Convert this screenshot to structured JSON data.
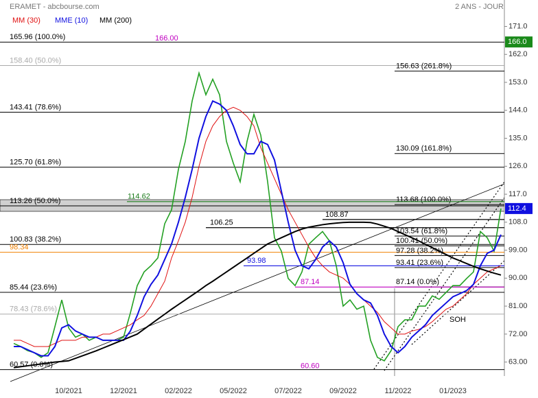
{
  "chart_data": {
    "type": "line",
    "title": "ERAMET - abcbourse.com",
    "subtitle": "2 ANS - JOUR",
    "categories": [
      null,
      null,
      null,
      null,
      null,
      null,
      null,
      null,
      "10/2021",
      null,
      null,
      null,
      null,
      null,
      null,
      null,
      "12/2021",
      null,
      null,
      null,
      null,
      null,
      null,
      null,
      "02/2022",
      null,
      null,
      null,
      null,
      null,
      null,
      null,
      "05/2022",
      null,
      null,
      null,
      null,
      null,
      null,
      null,
      "07/2022",
      null,
      null,
      null,
      null,
      null,
      null,
      null,
      "09/2022",
      null,
      null,
      null,
      null,
      null,
      null,
      null,
      "11/2022",
      null,
      null,
      null,
      null,
      null,
      null,
      null,
      "01/2023",
      null,
      null,
      null,
      null,
      null,
      null,
      null
    ],
    "values": [
      69,
      68,
      66.7,
      66,
      64.5,
      66,
      74.4,
      83,
      74,
      71,
      72,
      70,
      71,
      70,
      70,
      70,
      71,
      78.8,
      87.6,
      92,
      94,
      96.5,
      107.5,
      112,
      125,
      134,
      147,
      156,
      149,
      154,
      149,
      134,
      127,
      121,
      134,
      142.7,
      136,
      121,
      103,
      98.7,
      89.9,
      87.6,
      92,
      100.9,
      103,
      105,
      102,
      94,
      81,
      83,
      80,
      81,
      70,
      64.5,
      63.4,
      66.7,
      74.4,
      76.6,
      76.6,
      81,
      81,
      84.3,
      83.2,
      85.4,
      87.6,
      87.6,
      89.9,
      92,
      105,
      103,
      98.7,
      112.4
    ],
    "color": "#22a022",
    "series": [
      {
        "name": "MM (30)",
        "color": "#e01010",
        "values": [
          70,
          70,
          69,
          68,
          68,
          68,
          69,
          70,
          70,
          70,
          71,
          71,
          71,
          72,
          72,
          73,
          74,
          75,
          76.6,
          78,
          81,
          85,
          89,
          96.5,
          102,
          108,
          116,
          126,
          134,
          139,
          142,
          144,
          145,
          144,
          142,
          139,
          132,
          127,
          122,
          117,
          112,
          108,
          104,
          100,
          96.5,
          94,
          92,
          91,
          90,
          88,
          85,
          83,
          81,
          79,
          76,
          74,
          72,
          72,
          73,
          73.5,
          74.4,
          76,
          78,
          80,
          81,
          83,
          85,
          88,
          90,
          92,
          93,
          94
        ]
      },
      {
        "name": "MME (10)",
        "color": "#1010e0",
        "values": [
          68,
          68,
          67,
          66,
          65,
          65,
          68,
          74,
          75,
          73,
          72,
          71,
          71,
          70,
          70,
          70,
          70,
          73,
          78,
          84,
          88,
          91,
          96,
          101,
          108,
          116,
          125,
          135,
          142,
          147,
          146,
          144,
          139,
          133,
          130,
          130,
          134,
          133,
          128,
          118,
          108,
          99,
          94,
          93,
          96,
          100,
          102,
          100,
          95,
          88,
          85,
          83,
          82,
          78,
          72,
          68,
          66,
          68,
          71,
          73,
          75,
          78,
          80,
          82,
          84,
          85,
          86,
          88,
          94,
          98,
          99,
          104
        ]
      },
      {
        "name": "MM (200)",
        "color": "#000000",
        "values": [
          61.2,
          61.5,
          61.8,
          62.1,
          62.4,
          62.7,
          63,
          63.2,
          63.4,
          64.2,
          65,
          65.8,
          66.6,
          67.5,
          68.4,
          69.3,
          70.2,
          71.1,
          72,
          73.6,
          75.2,
          76.8,
          78.4,
          80,
          81.5,
          83,
          84.5,
          86,
          87.6,
          89,
          90.5,
          92,
          93.5,
          95,
          96.5,
          98,
          99.5,
          101,
          102,
          103,
          104,
          105,
          105.8,
          106.4,
          106.8,
          107.2,
          107.5,
          107.7,
          107.9,
          108,
          108,
          108,
          107.9,
          107.4,
          106.7,
          106,
          105,
          104,
          103,
          102,
          100.9,
          99.8,
          98.7,
          97.6,
          96.5,
          95.6,
          94.7,
          93.8,
          93,
          92.3,
          91.6,
          91
        ]
      }
    ],
    "ylim": [
      58.5,
      179.5
    ],
    "yticks": [
      {
        "value": 63,
        "label": "63.00"
      },
      {
        "value": 72,
        "label": "72.00"
      },
      {
        "value": 81,
        "label": "81.00"
      },
      {
        "value": 90,
        "label": "90.00"
      },
      {
        "value": 99,
        "label": "99.00"
      },
      {
        "value": 108,
        "label": "108.0"
      },
      {
        "value": 117,
        "label": "117.0"
      },
      {
        "value": 126,
        "label": "126.0"
      },
      {
        "value": 135,
        "label": "135.0"
      },
      {
        "value": 144,
        "label": "144.0"
      },
      {
        "value": 153,
        "label": "153.0"
      },
      {
        "value": 162,
        "label": "162.0"
      },
      {
        "value": 171,
        "label": "171.0"
      }
    ],
    "price_tags": [
      {
        "value": 166.0,
        "label": "166.0",
        "color": "#1a8a1a"
      },
      {
        "value": 112.4,
        "label": "112.4",
        "color": "#1010e0"
      }
    ],
    "levels": [
      {
        "value": 165.96,
        "label": "165.96  (100.0%)",
        "color": "#000000"
      },
      {
        "value": 158.4,
        "label": "158.40  (50.0%)",
        "color": "#aaaaaa"
      },
      {
        "value": 143.41,
        "label": "143.41  (78.6%)",
        "color": "#000000"
      },
      {
        "value": 125.7,
        "label": "125.70  (61.8%)",
        "color": "#000000"
      },
      {
        "value": 113.26,
        "label": "113.26  (50.0%)",
        "color": "#000000"
      },
      {
        "value": 100.83,
        "label": "100.83  (38.2%)",
        "color": "#000000"
      },
      {
        "value": 98.34,
        "label": "98.34",
        "color": "#f08000"
      },
      {
        "value": 85.44,
        "label": "85.44  (23.6%)",
        "color": "#000000"
      },
      {
        "value": 78.43,
        "label": "78.43  (78.6%)",
        "color": "#aaaaaa"
      },
      {
        "value": 60.57,
        "label": "60.57  (0.0%)",
        "color": "#000000"
      }
    ],
    "extensions": [
      {
        "value": 156.63,
        "label": "156.63  (261.8%)"
      },
      {
        "value": 130.09,
        "label": "130.09  (161.8%)"
      },
      {
        "value": 113.68,
        "label": "113.68  (100.0%)"
      },
      {
        "value": 103.54,
        "label": "103.54  (61.8%)"
      },
      {
        "value": 100.41,
        "label": "100.41  (50.0%)"
      },
      {
        "value": 97.28,
        "label": "97.28  (38.2%)"
      },
      {
        "value": 93.41,
        "label": "93.41  (23.6%)"
      },
      {
        "value": 87.14,
        "label": "87.14  (0.0%)"
      }
    ],
    "annotations": [
      {
        "value": 166.0,
        "label": "166.00",
        "color": "#c000c0"
      },
      {
        "value": 114.62,
        "label": "114.62",
        "color": "#1a7a1a"
      },
      {
        "value": 106.25,
        "label": "106.25",
        "color": "#000000"
      },
      {
        "value": 108.87,
        "label": "108.87",
        "color": "#000000"
      },
      {
        "value": 93.98,
        "label": "93.98",
        "color": "#1010e0"
      },
      {
        "value": 87.14,
        "label": "87.14",
        "color": "#c000c0"
      },
      {
        "value": 60.6,
        "label": "60.60",
        "color": "#c000c0"
      }
    ],
    "note": "SOH"
  }
}
